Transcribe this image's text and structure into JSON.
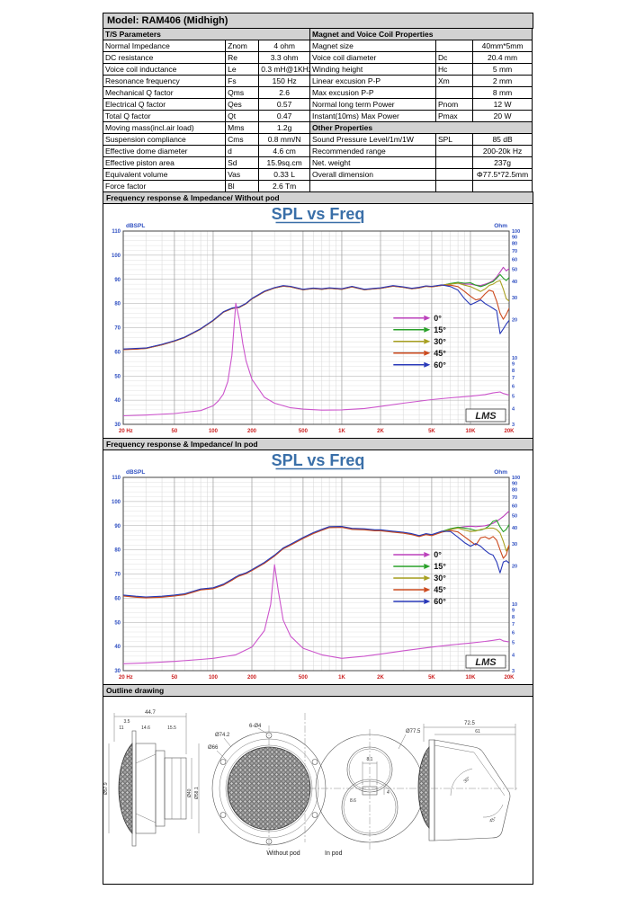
{
  "model_header": "Model: RAM406 (Midhigh)",
  "table": {
    "left": {
      "section": "T/S Parameters",
      "rows": [
        [
          "Normal Impedance",
          "Znom",
          "4 ohm"
        ],
        [
          "DC resistance",
          "Re",
          "3.3 ohm"
        ],
        [
          "Voice coil inductance",
          "Le",
          "0.3 mH@1KHz"
        ],
        [
          "Resonance frequency",
          "Fs",
          "150 Hz"
        ],
        [
          "Mechanical Q factor",
          "Qms",
          "2.6"
        ],
        [
          "Electrical Q factor",
          "Qes",
          "0.57"
        ],
        [
          "Total Q factor",
          "Qt",
          "0.47"
        ],
        [
          "Moving mass(incl.air load)",
          "Mms",
          "1.2g"
        ],
        [
          "Suspension compliance",
          "Cms",
          "0.8 mm/N"
        ],
        [
          "Effective dome diameter",
          "d",
          "4.6 cm"
        ],
        [
          "Effective piston area",
          "Sd",
          "15.9sq.cm"
        ],
        [
          "Equivalent volume",
          "Vas",
          "0.33 L"
        ],
        [
          "Force factor",
          "Bl",
          "2.6 Tm"
        ]
      ]
    },
    "right": {
      "section1": "Magnet and Voice Coil Properties",
      "rows1": [
        [
          "Magnet size",
          "",
          "40mm*5mm"
        ],
        [
          "Voice coil diameter",
          "Dc",
          "20.4 mm"
        ],
        [
          "Winding height",
          "Hc",
          "5 mm"
        ],
        [
          "Linear excusion P-P",
          "Xm",
          "2 mm"
        ],
        [
          "Max excusion P-P",
          "",
          "8 mm"
        ],
        [
          "Normal long term Power",
          "Pnom",
          "12 W"
        ],
        [
          "Instant(10ms) Max Power",
          "Pmax",
          "20 W"
        ]
      ],
      "section2": "Other Properties",
      "rows2": [
        [
          "Sound Pressure Level/1m/1W",
          "SPL",
          "85 dB"
        ],
        [
          "Recommended range",
          "",
          "200-20k Hz"
        ],
        [
          "Net. weight",
          "",
          "237g"
        ],
        [
          "Overall dimension",
          "",
          "Φ77.5*72.5mm"
        ],
        [
          "",
          "",
          ""
        ]
      ]
    }
  },
  "sections": {
    "chart1_header": "Frequency response & Impedance/ Without pod",
    "chart2_header": "Frequency response & Impedance/ In pod",
    "outline_header": "Outline drawing"
  },
  "chart_data": [
    {
      "type": "line",
      "title": "SPL vs Freq",
      "title_color": "#3a6fa8",
      "axis_color": "#2f4fc1",
      "xaxis_color": "#cc2222",
      "x_scale": "log",
      "xlim": [
        20,
        20000
      ],
      "left_axis": {
        "label": "dBSPL",
        "lim": [
          30,
          110
        ],
        "ticks": [
          110,
          100,
          90,
          80,
          70,
          60,
          50,
          40,
          30
        ]
      },
      "right_axis": {
        "label": "Ohm",
        "scale": "log",
        "lim": [
          3,
          100
        ],
        "ticks": [
          100,
          90,
          80,
          70,
          60,
          50,
          40,
          30,
          20,
          10,
          9,
          8,
          7,
          6,
          5,
          4,
          3
        ]
      },
      "x_ticks": [
        {
          "v": 20,
          "label": "20 Hz"
        },
        {
          "v": 50,
          "label": "50"
        },
        {
          "v": 100,
          "label": "100"
        },
        {
          "v": 200,
          "label": "200"
        },
        {
          "v": 500,
          "label": "500"
        },
        {
          "v": 1000,
          "label": "1K"
        },
        {
          "v": 2000,
          "label": "2K"
        },
        {
          "v": 5000,
          "label": "5K"
        },
        {
          "v": 10000,
          "label": "10K"
        },
        {
          "v": 20000,
          "label": "20K"
        }
      ],
      "grid": true,
      "legend_pos": {
        "x": 0.7,
        "y": 0.45
      },
      "watermark": "LMS",
      "freq": [
        20,
        25,
        30,
        40,
        50,
        60,
        80,
        100,
        120,
        140,
        150,
        160,
        180,
        200,
        250,
        300,
        350,
        400,
        500,
        600,
        700,
        800,
        1000,
        1200,
        1500,
        1800,
        2000,
        2500,
        3000,
        3500,
        4000,
        4500,
        5000,
        6000,
        7000,
        8000,
        9000,
        10000,
        11000,
        12000,
        13000,
        14000,
        15000,
        16000,
        17000,
        18000,
        19000,
        20000
      ],
      "series": [
        {
          "name": "0°",
          "color": "#bb40bb",
          "spl": [
            61.0,
            61.2,
            61.5,
            63.0,
            64.5,
            66.0,
            69.5,
            73.0,
            76.5,
            78.0,
            78.3,
            78.5,
            80.0,
            82.0,
            85.0,
            86.5,
            87.3,
            87.0,
            85.8,
            86.3,
            86.0,
            86.4,
            86.0,
            87.0,
            85.8,
            86.2,
            86.4,
            87.3,
            86.8,
            86.2,
            86.6,
            87.2,
            87.0,
            87.6,
            88.2,
            88.4,
            88.0,
            88.0,
            87.6,
            87.4,
            88.0,
            88.6,
            89.5,
            91.0,
            93.0,
            95.0,
            93.5,
            94.5
          ]
        },
        {
          "name": "15°",
          "color": "#28a028",
          "spl": [
            61.0,
            61.2,
            61.4,
            62.9,
            64.4,
            65.9,
            69.4,
            72.9,
            76.4,
            77.9,
            78.2,
            78.4,
            79.9,
            81.9,
            84.9,
            86.4,
            87.2,
            86.9,
            85.7,
            86.2,
            85.9,
            86.3,
            85.9,
            86.9,
            85.7,
            86.1,
            86.3,
            87.2,
            86.7,
            86.1,
            86.5,
            87.1,
            86.9,
            87.5,
            88.3,
            88.8,
            88.4,
            88.6,
            87.6,
            87.0,
            87.6,
            88.4,
            89.0,
            90.5,
            92.0,
            90.5,
            89.5,
            90.8
          ]
        },
        {
          "name": "30°",
          "color": "#a8a020",
          "spl": [
            61.1,
            61.3,
            61.5,
            63.0,
            64.5,
            66.0,
            69.5,
            73.0,
            76.5,
            78.0,
            78.3,
            78.5,
            80.0,
            82.0,
            85.0,
            86.5,
            87.3,
            87.0,
            85.8,
            86.3,
            86.0,
            86.4,
            86.0,
            87.0,
            85.8,
            86.2,
            86.4,
            87.3,
            86.8,
            86.2,
            86.6,
            87.2,
            87.0,
            87.6,
            88.0,
            88.4,
            87.6,
            87.0,
            86.0,
            85.0,
            86.0,
            87.5,
            88.0,
            89.0,
            89.5,
            86.0,
            82.0,
            81.0
          ]
        },
        {
          "name": "45°",
          "color": "#cc4a1e",
          "spl": [
            60.9,
            61.1,
            61.4,
            62.9,
            64.4,
            65.9,
            69.4,
            72.9,
            76.4,
            77.9,
            78.2,
            78.4,
            79.9,
            81.9,
            84.9,
            86.4,
            87.2,
            86.9,
            85.7,
            86.2,
            85.9,
            86.3,
            85.9,
            86.9,
            85.7,
            86.1,
            86.3,
            87.2,
            86.7,
            86.1,
            86.5,
            87.1,
            86.9,
            87.5,
            87.6,
            87.0,
            85.0,
            83.0,
            81.5,
            82.0,
            84.0,
            85.5,
            85.0,
            81.0,
            76.0,
            73.5,
            75.5,
            78.0
          ]
        },
        {
          "name": "60°",
          "color": "#2838b8",
          "spl": [
            61.2,
            61.4,
            61.6,
            63.1,
            64.6,
            66.1,
            69.6,
            73.1,
            76.6,
            78.1,
            78.4,
            78.6,
            80.1,
            82.1,
            85.1,
            86.6,
            87.4,
            87.1,
            85.9,
            86.4,
            86.1,
            86.5,
            86.1,
            87.1,
            85.9,
            86.3,
            86.5,
            87.4,
            86.9,
            86.3,
            86.7,
            87.3,
            87.1,
            87.7,
            87.0,
            85.5,
            82.0,
            79.5,
            80.5,
            81.5,
            80.0,
            79.0,
            78.0,
            77.0,
            67.5,
            69.5,
            71.5,
            73.0
          ]
        }
      ],
      "impedance": {
        "name": "Impedance",
        "color": "#cc55cc",
        "freq": [
          20,
          30,
          50,
          80,
          100,
          110,
          120,
          130,
          140,
          150,
          160,
          170,
          180,
          200,
          250,
          300,
          400,
          500,
          700,
          1000,
          1500,
          2000,
          3000,
          5000,
          7000,
          10000,
          13000,
          15000,
          17000,
          18000,
          20000
        ],
        "ohms": [
          3.5,
          3.55,
          3.65,
          3.85,
          4.2,
          4.6,
          5.2,
          6.5,
          10.5,
          27,
          20,
          13,
          9.5,
          6.8,
          4.9,
          4.4,
          4.05,
          3.95,
          3.88,
          3.9,
          4.0,
          4.15,
          4.4,
          4.7,
          4.85,
          5.0,
          5.15,
          5.3,
          5.4,
          5.25,
          5.1
        ]
      }
    },
    {
      "type": "line",
      "title": "SPL vs Freq",
      "title_color": "#3a6fa8",
      "axis_color": "#2f4fc1",
      "xaxis_color": "#cc2222",
      "x_scale": "log",
      "xlim": [
        20,
        20000
      ],
      "left_axis": {
        "label": "dBSPL",
        "lim": [
          30,
          110
        ],
        "ticks": [
          110,
          100,
          90,
          80,
          70,
          60,
          50,
          40,
          30
        ]
      },
      "right_axis": {
        "label": "Ohm",
        "scale": "log",
        "lim": [
          3,
          100
        ],
        "ticks": [
          100,
          90,
          80,
          70,
          60,
          50,
          40,
          30,
          20,
          10,
          9,
          8,
          7,
          6,
          5,
          4,
          3
        ]
      },
      "x_ticks": [
        {
          "v": 20,
          "label": "20 Hz"
        },
        {
          "v": 50,
          "label": "50"
        },
        {
          "v": 100,
          "label": "100"
        },
        {
          "v": 200,
          "label": "200"
        },
        {
          "v": 500,
          "label": "500"
        },
        {
          "v": 1000,
          "label": "1K"
        },
        {
          "v": 2000,
          "label": "2K"
        },
        {
          "v": 5000,
          "label": "5K"
        },
        {
          "v": 10000,
          "label": "10K"
        },
        {
          "v": 20000,
          "label": "20K"
        }
      ],
      "grid": true,
      "legend_pos": {
        "x": 0.7,
        "y": 0.4
      },
      "watermark": "LMS",
      "freq": [
        20,
        25,
        30,
        40,
        50,
        60,
        80,
        100,
        120,
        140,
        150,
        160,
        180,
        200,
        250,
        300,
        350,
        400,
        500,
        600,
        700,
        800,
        1000,
        1200,
        1500,
        1800,
        2000,
        2500,
        3000,
        3500,
        4000,
        4500,
        5000,
        6000,
        7000,
        8000,
        9000,
        10000,
        11000,
        12000,
        13000,
        14000,
        15000,
        16000,
        17000,
        18000,
        19000,
        20000
      ],
      "series": [
        {
          "name": "0°",
          "color": "#bb40bb",
          "spl": [
            61.0,
            60.5,
            60.2,
            60.5,
            61.0,
            61.5,
            63.5,
            64.0,
            65.5,
            67.5,
            68.5,
            69.3,
            70.2,
            71.5,
            74.5,
            77.5,
            80.5,
            82.0,
            84.8,
            86.8,
            88.2,
            89.3,
            89.4,
            88.6,
            88.4,
            88.0,
            88.0,
            87.4,
            87.0,
            86.4,
            85.6,
            86.4,
            86.0,
            87.4,
            88.6,
            89.2,
            89.6,
            89.8,
            89.6,
            89.8,
            90.0,
            90.4,
            91.0,
            91.8,
            92.8,
            93.8,
            95.0,
            96.0
          ]
        },
        {
          "name": "15°",
          "color": "#28a028",
          "spl": [
            61.2,
            60.7,
            60.4,
            60.7,
            61.2,
            61.7,
            63.7,
            64.2,
            65.7,
            67.7,
            68.7,
            69.5,
            70.4,
            71.7,
            74.7,
            77.7,
            80.7,
            82.2,
            85.0,
            87.0,
            88.4,
            89.5,
            89.6,
            88.8,
            88.6,
            88.2,
            88.2,
            87.6,
            87.2,
            86.6,
            85.8,
            86.6,
            86.2,
            87.6,
            88.8,
            89.4,
            89.0,
            88.6,
            88.0,
            88.2,
            88.8,
            90.0,
            91.8,
            92.3,
            89.5,
            87.5,
            88.5,
            90.5
          ]
        },
        {
          "name": "30°",
          "color": "#a8a020",
          "spl": [
            61.1,
            60.6,
            60.3,
            60.6,
            61.1,
            61.6,
            63.6,
            64.1,
            65.6,
            67.6,
            68.6,
            69.4,
            70.3,
            71.6,
            74.6,
            77.6,
            80.6,
            82.1,
            84.9,
            86.9,
            88.3,
            89.4,
            89.5,
            88.7,
            88.5,
            88.1,
            88.1,
            87.5,
            87.1,
            86.5,
            85.7,
            86.5,
            86.1,
            87.5,
            88.4,
            89.0,
            88.2,
            87.6,
            87.8,
            88.4,
            88.8,
            89.0,
            89.0,
            88.4,
            87.0,
            83.5,
            79.5,
            82.0
          ]
        },
        {
          "name": "45°",
          "color": "#cc4a1e",
          "spl": [
            60.9,
            60.4,
            60.1,
            60.4,
            60.9,
            61.4,
            63.4,
            63.9,
            65.4,
            67.4,
            68.4,
            69.2,
            70.1,
            71.4,
            74.4,
            77.4,
            80.4,
            81.9,
            84.7,
            86.7,
            88.1,
            89.2,
            89.3,
            88.5,
            88.3,
            87.9,
            87.9,
            87.3,
            86.9,
            86.3,
            85.5,
            86.3,
            85.9,
            87.3,
            88.0,
            87.4,
            85.4,
            83.6,
            82.0,
            85.0,
            85.4,
            84.5,
            85.5,
            84.0,
            80.0,
            76.5,
            78.0,
            82.0
          ]
        },
        {
          "name": "60°",
          "color": "#2838b8",
          "spl": [
            61.3,
            60.8,
            60.5,
            60.8,
            61.3,
            61.8,
            63.8,
            64.3,
            65.8,
            67.8,
            68.8,
            69.6,
            70.5,
            71.8,
            74.8,
            77.8,
            80.8,
            82.3,
            85.1,
            87.1,
            88.5,
            89.6,
            89.7,
            88.9,
            88.7,
            88.3,
            88.3,
            87.7,
            87.3,
            86.7,
            85.9,
            86.7,
            86.3,
            87.7,
            87.6,
            85.2,
            83.0,
            81.5,
            82.6,
            81.5,
            79.8,
            78.5,
            77.8,
            75.0,
            70.5,
            75.0,
            75.5,
            74.5
          ]
        }
      ],
      "impedance": {
        "name": "Impedance",
        "color": "#cc55cc",
        "freq": [
          20,
          30,
          50,
          80,
          100,
          150,
          200,
          250,
          280,
          300,
          320,
          350,
          400,
          500,
          700,
          1000,
          1500,
          2000,
          3000,
          5000,
          7000,
          10000,
          13000,
          15000,
          17000,
          18000,
          20000
        ],
        "ohms": [
          3.4,
          3.45,
          3.55,
          3.68,
          3.75,
          4.0,
          4.6,
          6.2,
          10,
          20.5,
          13,
          7.5,
          5.6,
          4.5,
          4.0,
          3.75,
          3.9,
          4.05,
          4.3,
          4.6,
          4.78,
          4.95,
          5.1,
          5.2,
          5.3,
          5.15,
          5.05
        ]
      }
    }
  ],
  "outline": {
    "labels": {
      "without_pod": "Without pod",
      "in_pod": "In pod"
    },
    "dims": {
      "total_w": "44.7",
      "flange_t": "3.5",
      "front_d": "11",
      "mid_d": "14.6",
      "rear_d": "15.5",
      "dome_dia": "Ø57.9",
      "magnet_dia": "Ø40",
      "body_dia": "Ø58.1",
      "holes": "6-Ø4",
      "flange_dia": "Ø74.2",
      "inner_dia": "Ø66",
      "pod_dia": "Ø77.5",
      "slot_w": "8.1",
      "slot_h": "4",
      "slot_off": "8.6",
      "pod_depth": "72.5",
      "pod_inner": "61",
      "angle1": "30°",
      "angle2": "45°"
    }
  }
}
